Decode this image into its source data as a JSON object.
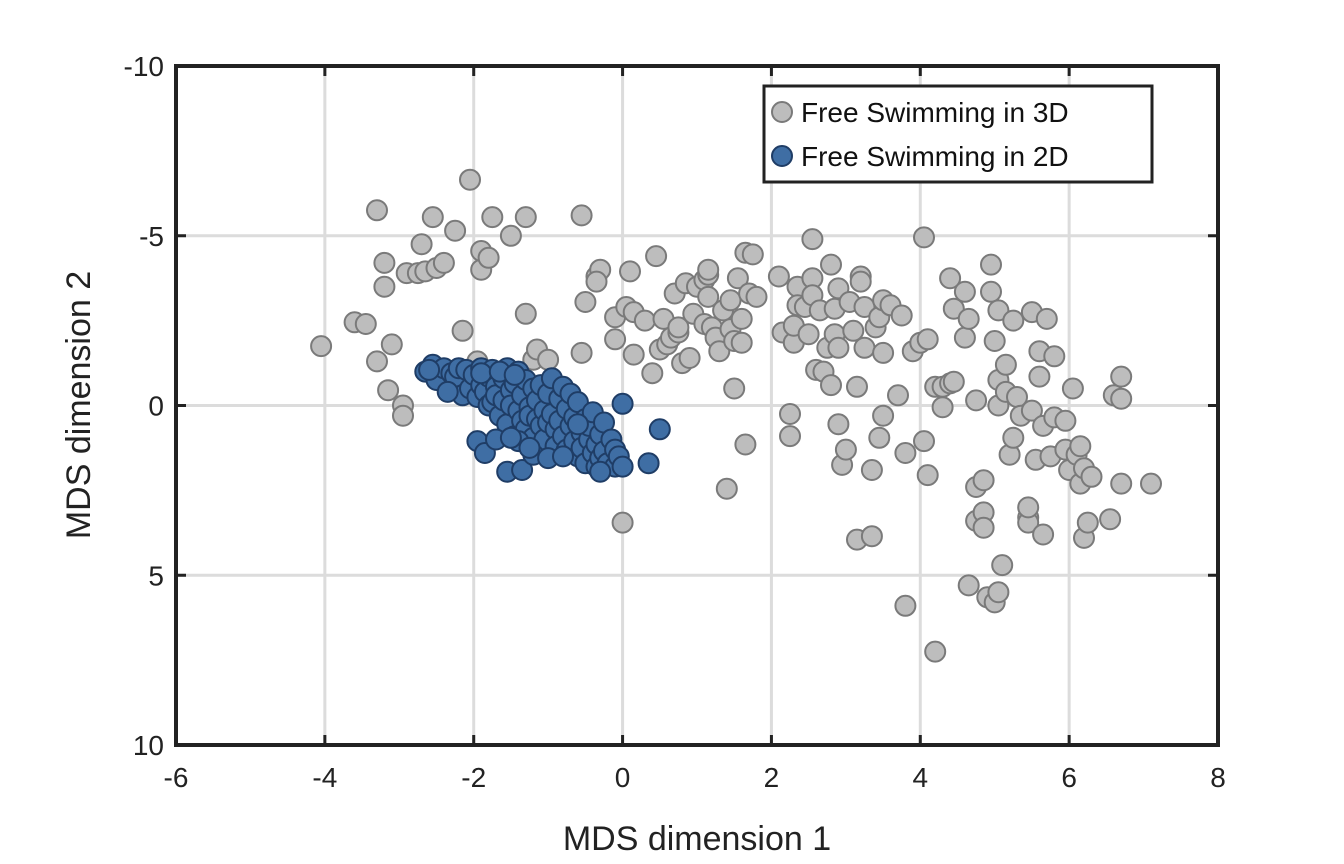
{
  "chart_data": {
    "type": "scatter",
    "title": "",
    "xlabel": "MDS dimension 1",
    "ylabel": "MDS dimension 2",
    "xlim": [
      -6,
      8
    ],
    "ylim": [
      -10,
      10
    ],
    "y_reversed": true,
    "xticks": [
      "-6",
      "-4",
      "-2",
      "0",
      "2",
      "4",
      "6",
      "8"
    ],
    "yticks": [
      "-10",
      "-5",
      "0",
      "5",
      "10"
    ],
    "grid": true,
    "legend_position": "top-right",
    "series": [
      {
        "name": "Free Swimming in 3D",
        "color": "#bdbdbd",
        "edge_color": "#7a7a7a",
        "points": [
          [
            -4.05,
            -1.75
          ],
          [
            -3.6,
            -2.45
          ],
          [
            -3.45,
            -2.4
          ],
          [
            -3.3,
            -1.3
          ],
          [
            -3.1,
            -1.8
          ],
          [
            -3.15,
            -0.45
          ],
          [
            -3.2,
            -3.5
          ],
          [
            -3.2,
            -4.2
          ],
          [
            -3.3,
            -5.75
          ],
          [
            -2.95,
            0.0
          ],
          [
            -2.95,
            0.3
          ],
          [
            -2.9,
            -3.9
          ],
          [
            -2.75,
            -3.9
          ],
          [
            -2.7,
            -4.75
          ],
          [
            -2.65,
            -3.95
          ],
          [
            -2.55,
            -5.55
          ],
          [
            -2.5,
            -4.05
          ],
          [
            -2.4,
            -4.2
          ],
          [
            -2.25,
            -5.15
          ],
          [
            -2.15,
            -2.2
          ],
          [
            -2.05,
            -6.65
          ],
          [
            -1.95,
            -1.3
          ],
          [
            -1.9,
            -4.0
          ],
          [
            -1.9,
            -4.55
          ],
          [
            -1.8,
            -4.35
          ],
          [
            -1.75,
            -5.55
          ],
          [
            -1.5,
            -5.0
          ],
          [
            -1.3,
            -5.55
          ],
          [
            -1.3,
            -2.7
          ],
          [
            -1.2,
            -1.35
          ],
          [
            -1.15,
            -1.65
          ],
          [
            -1.0,
            -1.35
          ],
          [
            -0.55,
            -5.6
          ],
          [
            -0.55,
            -1.55
          ],
          [
            -0.5,
            -3.05
          ],
          [
            -0.35,
            -3.8
          ],
          [
            -0.3,
            -4.0
          ],
          [
            -0.35,
            -3.65
          ],
          [
            -0.1,
            -2.6
          ],
          [
            -0.1,
            -1.95
          ],
          [
            0.05,
            -2.9
          ],
          [
            0.1,
            -3.95
          ],
          [
            0.15,
            -1.5
          ],
          [
            0.15,
            -2.75
          ],
          [
            0.3,
            -2.5
          ],
          [
            0.4,
            -0.95
          ],
          [
            0.45,
            -4.4
          ],
          [
            0.5,
            -1.65
          ],
          [
            0.55,
            -2.55
          ],
          [
            0.6,
            -1.8
          ],
          [
            0.65,
            -2.0
          ],
          [
            0.7,
            -3.3
          ],
          [
            0.75,
            -2.15
          ],
          [
            0.75,
            -2.3
          ],
          [
            0.8,
            -1.25
          ],
          [
            0.85,
            -3.6
          ],
          [
            0.9,
            -1.4
          ],
          [
            0.95,
            -2.7
          ],
          [
            1.0,
            -3.5
          ],
          [
            1.1,
            -3.7
          ],
          [
            1.15,
            -3.85
          ],
          [
            1.15,
            -3.2
          ],
          [
            1.1,
            -2.4
          ],
          [
            1.2,
            -2.3
          ],
          [
            1.15,
            -4.0
          ],
          [
            1.25,
            -2.0
          ],
          [
            1.3,
            -1.6
          ],
          [
            1.35,
            -2.8
          ],
          [
            1.4,
            2.45
          ],
          [
            1.45,
            -3.1
          ],
          [
            1.45,
            -2.25
          ],
          [
            1.5,
            -0.5
          ],
          [
            1.5,
            -1.9
          ],
          [
            1.55,
            -3.75
          ],
          [
            1.6,
            -2.55
          ],
          [
            1.6,
            -1.85
          ],
          [
            1.65,
            1.15
          ],
          [
            1.65,
            -4.5
          ],
          [
            1.7,
            -3.3
          ],
          [
            1.75,
            -4.45
          ],
          [
            1.8,
            -3.2
          ],
          [
            2.1,
            -3.8
          ],
          [
            2.15,
            -2.15
          ],
          [
            2.25,
            0.9
          ],
          [
            2.25,
            0.25
          ],
          [
            2.3,
            -1.85
          ],
          [
            2.3,
            -2.35
          ],
          [
            2.35,
            -3.5
          ],
          [
            2.35,
            -2.95
          ],
          [
            2.45,
            -2.9
          ],
          [
            2.5,
            -2.1
          ],
          [
            2.55,
            -4.9
          ],
          [
            2.55,
            -3.75
          ],
          [
            2.55,
            -3.25
          ],
          [
            2.6,
            -1.05
          ],
          [
            2.65,
            -2.8
          ],
          [
            2.7,
            -1.0
          ],
          [
            2.75,
            -1.7
          ],
          [
            2.8,
            -0.6
          ],
          [
            2.8,
            -4.15
          ],
          [
            2.85,
            -2.1
          ],
          [
            2.85,
            -2.85
          ],
          [
            2.9,
            -1.7
          ],
          [
            2.9,
            -3.45
          ],
          [
            2.9,
            0.55
          ],
          [
            2.95,
            1.75
          ],
          [
            3.0,
            1.3
          ],
          [
            3.05,
            -3.05
          ],
          [
            3.1,
            -2.2
          ],
          [
            3.15,
            -0.55
          ],
          [
            3.15,
            3.95
          ],
          [
            3.2,
            -3.8
          ],
          [
            3.2,
            -3.65
          ],
          [
            3.25,
            -1.7
          ],
          [
            3.25,
            -2.9
          ],
          [
            3.35,
            3.85
          ],
          [
            3.35,
            1.9
          ],
          [
            3.4,
            -2.3
          ],
          [
            3.45,
            0.95
          ],
          [
            3.45,
            -2.6
          ],
          [
            3.5,
            -1.55
          ],
          [
            3.5,
            0.3
          ],
          [
            3.5,
            -3.1
          ],
          [
            3.6,
            -2.95
          ],
          [
            3.7,
            -0.3
          ],
          [
            3.75,
            -2.65
          ],
          [
            3.8,
            1.4
          ],
          [
            3.8,
            5.9
          ],
          [
            3.9,
            -1.6
          ],
          [
            4.0,
            -1.85
          ],
          [
            4.05,
            -4.95
          ],
          [
            4.05,
            1.05
          ],
          [
            4.1,
            -1.95
          ],
          [
            4.1,
            2.05
          ],
          [
            4.2,
            -0.55
          ],
          [
            4.2,
            7.25
          ],
          [
            4.3,
            -0.55
          ],
          [
            4.3,
            0.05
          ],
          [
            4.4,
            -0.65
          ],
          [
            4.4,
            -3.75
          ],
          [
            4.45,
            -2.85
          ],
          [
            4.45,
            -0.7
          ],
          [
            4.6,
            -3.35
          ],
          [
            4.6,
            -2.0
          ],
          [
            4.65,
            -2.55
          ],
          [
            4.65,
            5.3
          ],
          [
            4.75,
            -0.15
          ],
          [
            4.75,
            2.4
          ],
          [
            4.75,
            3.4
          ],
          [
            4.85,
            2.2
          ],
          [
            4.85,
            3.15
          ],
          [
            4.85,
            3.6
          ],
          [
            4.9,
            5.65
          ],
          [
            4.95,
            -3.35
          ],
          [
            4.95,
            -4.15
          ],
          [
            5.0,
            -1.9
          ],
          [
            5.0,
            5.8
          ],
          [
            5.05,
            -0.75
          ],
          [
            5.05,
            0.0
          ],
          [
            5.05,
            -2.8
          ],
          [
            5.05,
            5.5
          ],
          [
            5.1,
            4.7
          ],
          [
            5.15,
            -1.2
          ],
          [
            5.15,
            -0.4
          ],
          [
            5.2,
            1.45
          ],
          [
            5.25,
            0.95
          ],
          [
            5.25,
            -2.5
          ],
          [
            5.3,
            -0.25
          ],
          [
            5.35,
            0.3
          ],
          [
            5.45,
            3.3
          ],
          [
            5.45,
            3.45
          ],
          [
            5.45,
            3.0
          ],
          [
            5.5,
            -2.75
          ],
          [
            5.5,
            0.15
          ],
          [
            5.55,
            1.6
          ],
          [
            5.6,
            -1.6
          ],
          [
            5.6,
            -0.85
          ],
          [
            5.65,
            3.8
          ],
          [
            5.65,
            0.6
          ],
          [
            5.7,
            -2.55
          ],
          [
            5.75,
            1.5
          ],
          [
            5.8,
            -1.45
          ],
          [
            5.8,
            0.35
          ],
          [
            5.95,
            0.45
          ],
          [
            5.95,
            1.3
          ],
          [
            6.0,
            1.9
          ],
          [
            6.05,
            -0.5
          ],
          [
            6.1,
            1.45
          ],
          [
            6.15,
            1.2
          ],
          [
            6.15,
            2.3
          ],
          [
            6.2,
            1.85
          ],
          [
            6.2,
            3.9
          ],
          [
            6.25,
            3.45
          ],
          [
            6.3,
            2.1
          ],
          [
            6.55,
            3.35
          ],
          [
            6.6,
            -0.3
          ],
          [
            6.7,
            -0.85
          ],
          [
            6.7,
            -0.2
          ],
          [
            6.7,
            2.3
          ],
          [
            7.1,
            2.3
          ],
          [
            0.0,
            3.45
          ]
        ]
      },
      {
        "name": "Free Swimming in 2D",
        "color": "#3f6ea4",
        "edge_color": "#1f3d66",
        "points": [
          [
            -2.65,
            -1.0
          ],
          [
            -2.55,
            -1.2
          ],
          [
            -2.5,
            -0.75
          ],
          [
            -2.4,
            -1.1
          ],
          [
            -2.3,
            -0.95
          ],
          [
            -2.25,
            -0.85
          ],
          [
            -2.2,
            -1.1
          ],
          [
            -2.15,
            -0.3
          ],
          [
            -2.1,
            -1.05
          ],
          [
            -2.05,
            -0.5
          ],
          [
            -2.0,
            -0.9
          ],
          [
            -1.95,
            -0.25
          ],
          [
            -1.9,
            -1.1
          ],
          [
            -1.9,
            -0.6
          ],
          [
            -1.85,
            -0.4
          ],
          [
            -1.8,
            0.0
          ],
          [
            -1.8,
            -0.85
          ],
          [
            -1.75,
            -0.1
          ],
          [
            -1.75,
            -1.05
          ],
          [
            -1.7,
            -0.55
          ],
          [
            -1.7,
            -0.3
          ],
          [
            -1.65,
            0.3
          ],
          [
            -1.6,
            -0.8
          ],
          [
            -1.6,
            -0.15
          ],
          [
            -1.55,
            -1.1
          ],
          [
            -1.55,
            0.55
          ],
          [
            -1.5,
            -0.45
          ],
          [
            -1.5,
            0.0
          ],
          [
            -1.45,
            0.9
          ],
          [
            -1.45,
            -0.65
          ],
          [
            -1.4,
            0.15
          ],
          [
            -1.4,
            -1.0
          ],
          [
            -1.35,
            0.45
          ],
          [
            -1.35,
            -0.3
          ],
          [
            -1.3,
            -0.75
          ],
          [
            -1.3,
            0.7
          ],
          [
            -1.25,
            0.05
          ],
          [
            -1.25,
            0.3
          ],
          [
            -1.2,
            -0.5
          ],
          [
            -1.2,
            0.95
          ],
          [
            -1.15,
            -0.15
          ],
          [
            -1.15,
            0.4
          ],
          [
            -1.1,
            -0.6
          ],
          [
            -1.1,
            0.6
          ],
          [
            -1.05,
            0.15
          ],
          [
            -1.05,
            1.0
          ],
          [
            -1.0,
            -0.35
          ],
          [
            -1.0,
            0.5
          ],
          [
            -0.95,
            -0.8
          ],
          [
            -0.95,
            0.25
          ],
          [
            -0.9,
            0.7
          ],
          [
            -0.9,
            1.2
          ],
          [
            -0.85,
            -0.2
          ],
          [
            -0.85,
            0.45
          ],
          [
            -0.8,
            -0.55
          ],
          [
            -0.8,
            0.9
          ],
          [
            -0.75,
            0.1
          ],
          [
            -0.75,
            1.3
          ],
          [
            -0.7,
            0.6
          ],
          [
            -0.7,
            -0.35
          ],
          [
            -0.65,
            1.05
          ],
          [
            -0.65,
            0.35
          ],
          [
            -0.6,
            1.5
          ],
          [
            -0.6,
            -0.1
          ],
          [
            -0.55,
            0.8
          ],
          [
            -0.55,
            1.25
          ],
          [
            -0.5,
            0.4
          ],
          [
            -0.5,
            1.7
          ],
          [
            -0.45,
            1.0
          ],
          [
            -0.45,
            0.6
          ],
          [
            -0.4,
            1.4
          ],
          [
            -0.4,
            0.2
          ],
          [
            -0.35,
            1.8
          ],
          [
            -0.35,
            1.15
          ],
          [
            -0.3,
            0.85
          ],
          [
            -0.3,
            1.55
          ],
          [
            -0.25,
            1.35
          ],
          [
            -0.25,
            0.5
          ],
          [
            -0.2,
            1.7
          ],
          [
            -0.15,
            1.0
          ],
          [
            -0.1,
            1.3
          ],
          [
            -0.1,
            1.8
          ],
          [
            -0.05,
            1.5
          ],
          [
            0.0,
            1.8
          ],
          [
            0.0,
            -0.05
          ],
          [
            -1.95,
            1.05
          ],
          [
            -1.85,
            1.4
          ],
          [
            -1.7,
            1.0
          ],
          [
            -1.55,
            1.95
          ],
          [
            -1.35,
            1.9
          ],
          [
            -1.2,
            1.45
          ],
          [
            -1.0,
            1.55
          ],
          [
            -0.8,
            1.5
          ],
          [
            0.35,
            1.7
          ],
          [
            0.5,
            0.7
          ],
          [
            -1.4,
            1.05
          ],
          [
            -1.25,
            1.25
          ],
          [
            -1.5,
            0.95
          ],
          [
            -0.6,
            0.55
          ],
          [
            -0.3,
            1.95
          ],
          [
            -2.6,
            -1.05
          ],
          [
            -2.35,
            -0.4
          ],
          [
            -1.9,
            -0.95
          ],
          [
            -1.65,
            -1.0
          ],
          [
            -1.45,
            -0.9
          ]
        ]
      }
    ]
  },
  "legend": {
    "items": [
      {
        "label": "Free Swimming in 3D",
        "color": "#bdbdbd",
        "edge_color": "#7a7a7a"
      },
      {
        "label": "Free Swimming in 2D",
        "color": "#3f6ea4",
        "edge_color": "#1f3d66"
      }
    ]
  }
}
